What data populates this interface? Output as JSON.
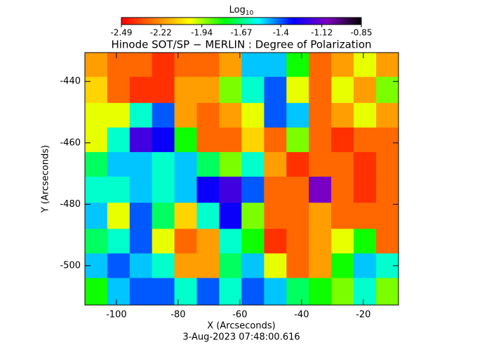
{
  "chart_data": {
    "type": "heatmap",
    "title": "Hinode SOT/SP − MERLIN : Degree of Polarization",
    "x_label": "X (Arcseconds)",
    "y_label": "Y (Arcseconds)",
    "footer": "3-Aug-2023 07:48:00.616",
    "colorbar_label": "Log",
    "colorbar_label_sub": "10",
    "clim": [
      -2.49,
      -0.85
    ],
    "colorbar_ticks": [
      -2.49,
      -2.22,
      -1.94,
      -1.67,
      -1.4,
      -1.12,
      -0.85
    ],
    "colorscale": [
      "#ff0000",
      "#ff8000",
      "#ffff00",
      "#00ff00",
      "#00ffff",
      "#0000ff",
      "#8000c0",
      "#000000"
    ],
    "xlim": [
      -110.2,
      -8.6
    ],
    "ylim": [
      -512.8,
      -430.6
    ],
    "xticks": [
      -100,
      -80,
      -60,
      -40,
      -20
    ],
    "yticks": [
      -440,
      -460,
      -480,
      -500
    ],
    "x": [
      -106.6,
      -99.3,
      -92.1,
      -84.8,
      -77.6,
      -70.3,
      -63.1,
      -55.8,
      -48.5,
      -41.3,
      -34.0,
      -26.8,
      -19.5,
      -12.2
    ],
    "y": [
      -434,
      -443,
      -451,
      -459,
      -467,
      -475,
      -484,
      -492,
      -500,
      -508
    ],
    "z": [
      [
        -2.2,
        -2.3,
        -2.3,
        -2.4,
        -2.3,
        -2.3,
        -2.2,
        -1.5,
        -1.5,
        -1.8,
        -2.3,
        -2.2,
        -2.0,
        -2.2
      ],
      [
        -2.1,
        -2.3,
        -2.4,
        -2.4,
        -2.2,
        -2.2,
        -1.9,
        -1.6,
        -1.4,
        -2.0,
        -2.3,
        -2.0,
        -2.2,
        -1.9
      ],
      [
        -2.0,
        -2.0,
        -1.6,
        -1.4,
        -2.2,
        -2.3,
        -2.2,
        -2.0,
        -1.4,
        -1.5,
        -2.3,
        -2.2,
        -2.0,
        -2.2
      ],
      [
        -2.0,
        -1.6,
        -1.2,
        -1.3,
        -1.8,
        -2.3,
        -2.3,
        -2.1,
        -2.3,
        -1.9,
        -2.3,
        -2.4,
        -2.3,
        -2.3
      ],
      [
        -1.7,
        -1.5,
        -1.5,
        -1.6,
        -1.5,
        -1.7,
        -1.9,
        -1.6,
        -2.2,
        -2.4,
        -2.3,
        -2.3,
        -2.4,
        -2.3
      ],
      [
        -1.6,
        -1.6,
        -1.5,
        -1.6,
        -1.5,
        -1.3,
        -1.2,
        -1.4,
        -2.3,
        -2.3,
        -1.1,
        -2.3,
        -2.4,
        -2.3
      ],
      [
        -1.5,
        -2.0,
        -1.4,
        -1.7,
        -2.1,
        -1.6,
        -1.3,
        -1.9,
        -2.3,
        -2.3,
        -2.2,
        -2.3,
        -2.3,
        -2.3
      ],
      [
        -1.7,
        -1.6,
        -1.4,
        -2.0,
        -2.3,
        -2.2,
        -1.6,
        -1.8,
        -2.4,
        -2.3,
        -2.2,
        -2.0,
        -1.8,
        -2.3
      ],
      [
        -1.5,
        -1.4,
        -1.5,
        -1.6,
        -2.2,
        -2.2,
        -1.7,
        -1.5,
        -2.0,
        -2.3,
        -2.2,
        -1.8,
        -1.5,
        -1.6
      ],
      [
        -1.8,
        -1.5,
        -1.4,
        -1.4,
        -1.6,
        -1.4,
        -1.6,
        -1.4,
        -1.5,
        -1.7,
        -1.8,
        -1.9,
        -1.6,
        -1.9
      ]
    ]
  }
}
